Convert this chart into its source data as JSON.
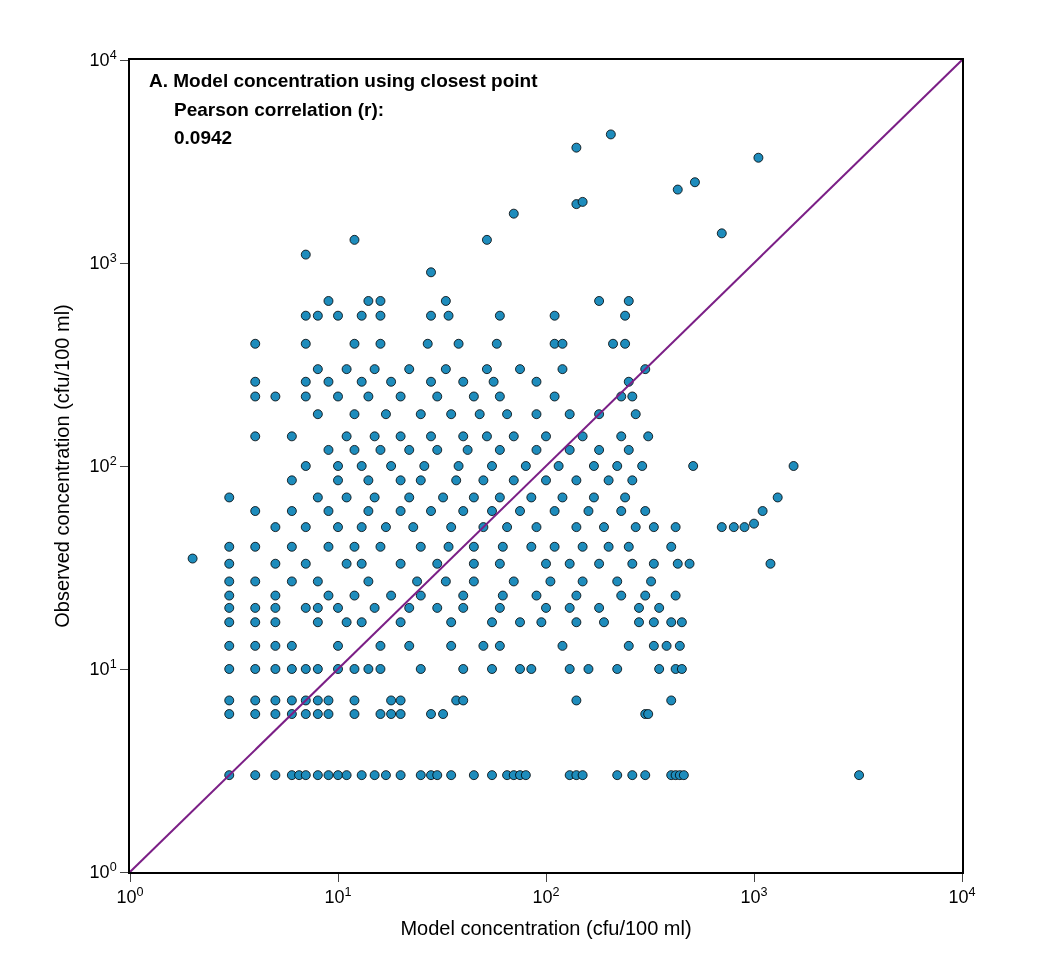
{
  "chart_data": {
    "type": "scatter",
    "xlabel": "Model concentration (cfu/100 ml)",
    "ylabel": "Observed concentration (cfu/100 ml)",
    "log": "xy",
    "marker": "circle",
    "xlim": [
      1,
      10000
    ],
    "ylim": [
      1,
      10000
    ],
    "xticks": [
      {
        "value": 1,
        "label": "10$^{0}$"
      },
      {
        "value": 10,
        "label": "10$^{1}$"
      },
      {
        "value": 100,
        "label": "10$^{2}$"
      },
      {
        "value": 1000,
        "label": "10$^{3}$"
      },
      {
        "value": 10000,
        "label": "10$^{4}$"
      }
    ],
    "yticks": [
      {
        "value": 1,
        "label": "10$^{0}$"
      },
      {
        "value": 10,
        "label": "10$^{1}$"
      },
      {
        "value": 100,
        "label": "10$^{2}$"
      },
      {
        "value": 1000,
        "label": "10$^{3}$"
      },
      {
        "value": 10000,
        "label": "10$^{4}$"
      }
    ],
    "annotations": [
      "A. Model concentration using closest point",
      "Pearson correlation (r):",
      "0.0942"
    ],
    "series": [
      {
        "color": "#1e8cbc",
        "x": [
          3,
          4,
          5,
          6,
          6.5,
          7,
          8,
          9,
          10,
          11,
          13,
          15,
          17,
          20,
          25,
          28,
          30,
          35,
          45,
          55,
          65,
          70,
          75,
          80,
          130,
          140,
          150,
          220,
          260,
          300,
          400,
          420,
          440,
          460,
          3200,
          3,
          4,
          5,
          6,
          7,
          8,
          9,
          12,
          16,
          18,
          20,
          28,
          32,
          300,
          310,
          3,
          4,
          5,
          6,
          7,
          8,
          9,
          12,
          18,
          20,
          37,
          40,
          140,
          400,
          3,
          4,
          5,
          6,
          7,
          8,
          10,
          12,
          14,
          16,
          25,
          40,
          55,
          75,
          85,
          130,
          160,
          220,
          350,
          420,
          450,
          3,
          4,
          5,
          6,
          10,
          16,
          22,
          35,
          50,
          60,
          120,
          250,
          330,
          380,
          440,
          3,
          4,
          5,
          8,
          11,
          13,
          20,
          35,
          55,
          75,
          95,
          140,
          190,
          280,
          330,
          400,
          450,
          3,
          4,
          5,
          7,
          8,
          10,
          15,
          22,
          30,
          40,
          60,
          100,
          130,
          180,
          280,
          350,
          3,
          5,
          9,
          12,
          18,
          25,
          40,
          62,
          90,
          140,
          230,
          300,
          420,
          3,
          4,
          6,
          8,
          14,
          24,
          33,
          45,
          70,
          105,
          150,
          220,
          320,
          3,
          5,
          7,
          11,
          13,
          20,
          30,
          45,
          60,
          100,
          130,
          180,
          260,
          330,
          430,
          490,
          1200,
          3,
          4,
          6,
          9,
          12,
          16,
          25,
          34,
          45,
          62,
          85,
          110,
          150,
          200,
          250,
          400,
          5,
          7,
          10,
          13,
          17,
          23,
          35,
          50,
          65,
          90,
          140,
          190,
          270,
          330,
          420,
          700,
          800,
          4,
          6,
          9,
          14,
          20,
          28,
          40,
          55,
          75,
          110,
          160,
          230,
          300,
          1100,
          3,
          8,
          11,
          15,
          22,
          32,
          45,
          60,
          85,
          120,
          170,
          240,
          1300,
          6,
          10,
          14,
          20,
          25,
          37,
          50,
          70,
          100,
          140,
          200,
          260,
          7,
          10,
          13,
          18,
          26,
          38,
          55,
          80,
          115,
          170,
          220,
          290,
          510,
          1550,
          9,
          12,
          16,
          22,
          30,
          42,
          60,
          90,
          130,
          180,
          250,
          4,
          6,
          11,
          15,
          20,
          28,
          40,
          52,
          70,
          100,
          150,
          230,
          310,
          8,
          12,
          17,
          25,
          35,
          48,
          65,
          90,
          130,
          180,
          270,
          4,
          5,
          7,
          10,
          14,
          20,
          30,
          45,
          60,
          110,
          230,
          260,
          4,
          7,
          9,
          13,
          18,
          28,
          40,
          56,
          90,
          250,
          8,
          11,
          15,
          22,
          33,
          52,
          75,
          120,
          300,
          4,
          7,
          12,
          16,
          27,
          38,
          58,
          110,
          120,
          210,
          240,
          7,
          8,
          10,
          13,
          16,
          28,
          34,
          60,
          110,
          240,
          9,
          14,
          16,
          33,
          180,
          250,
          7,
          12,
          28,
          52,
          70,
          140,
          150,
          140,
          205,
          430,
          520,
          1050,
          700,
          2,
          900,
          1000
        ],
        "values": [
          3,
          3,
          3,
          3,
          3,
          3,
          3,
          3,
          3,
          3,
          3,
          3,
          3,
          3,
          3,
          3,
          3,
          3,
          3,
          3,
          3,
          3,
          3,
          3,
          3,
          3,
          3,
          3,
          3,
          3,
          3,
          3,
          3,
          3,
          3,
          6,
          6,
          6,
          6,
          6,
          6,
          6,
          6,
          6,
          6,
          6,
          6,
          6,
          6,
          6,
          7,
          7,
          7,
          7,
          7,
          7,
          7,
          7,
          7,
          7,
          7,
          7,
          7,
          7,
          10,
          10,
          10,
          10,
          10,
          10,
          10,
          10,
          10,
          10,
          10,
          10,
          10,
          10,
          10,
          10,
          10,
          10,
          10,
          10,
          10,
          13,
          13,
          13,
          13,
          13,
          13,
          13,
          13,
          13,
          13,
          13,
          13,
          13,
          13,
          13,
          17,
          17,
          17,
          17,
          17,
          17,
          17,
          17,
          17,
          17,
          17,
          17,
          17,
          17,
          17,
          17,
          17,
          20,
          20,
          20,
          20,
          20,
          20,
          20,
          20,
          20,
          20,
          20,
          20,
          20,
          20,
          20,
          20,
          23,
          23,
          23,
          23,
          23,
          23,
          23,
          23,
          23,
          23,
          23,
          23,
          23,
          27,
          27,
          27,
          27,
          27,
          27,
          27,
          27,
          27,
          27,
          27,
          27,
          27,
          33,
          33,
          33,
          33,
          33,
          33,
          33,
          33,
          33,
          33,
          33,
          33,
          33,
          33,
          33,
          33,
          33,
          40,
          40,
          40,
          40,
          40,
          40,
          40,
          40,
          40,
          40,
          40,
          40,
          40,
          40,
          40,
          40,
          50,
          50,
          50,
          50,
          50,
          50,
          50,
          50,
          50,
          50,
          50,
          50,
          50,
          50,
          50,
          50,
          50,
          60,
          60,
          60,
          60,
          60,
          60,
          60,
          60,
          60,
          60,
          60,
          60,
          60,
          60,
          70,
          70,
          70,
          70,
          70,
          70,
          70,
          70,
          70,
          70,
          70,
          70,
          70,
          85,
          85,
          85,
          85,
          85,
          85,
          85,
          85,
          85,
          85,
          85,
          85,
          100,
          100,
          100,
          100,
          100,
          100,
          100,
          100,
          100,
          100,
          100,
          100,
          100,
          100,
          120,
          120,
          120,
          120,
          120,
          120,
          120,
          120,
          120,
          120,
          120,
          140,
          140,
          140,
          140,
          140,
          140,
          140,
          140,
          140,
          140,
          140,
          140,
          140,
          180,
          180,
          180,
          180,
          180,
          180,
          180,
          180,
          180,
          180,
          180,
          220,
          220,
          220,
          220,
          220,
          220,
          220,
          220,
          220,
          220,
          220,
          220,
          260,
          260,
          260,
          260,
          260,
          260,
          260,
          260,
          260,
          260,
          300,
          300,
          300,
          300,
          300,
          300,
          300,
          300,
          300,
          400,
          400,
          400,
          400,
          400,
          400,
          400,
          400,
          400,
          400,
          400,
          550,
          550,
          550,
          550,
          550,
          550,
          550,
          550,
          550,
          550,
          650,
          650,
          650,
          650,
          650,
          650,
          1100,
          1300,
          900,
          1300,
          1750,
          1950,
          2000,
          3700,
          4300,
          2300,
          2500,
          3300,
          1400,
          35,
          50,
          52
        ]
      },
      {
        "type": "line",
        "color": "#7b1f86",
        "x": [
          1,
          10000
        ],
        "values": [
          1,
          10000
        ],
        "marker": "none"
      }
    ]
  }
}
